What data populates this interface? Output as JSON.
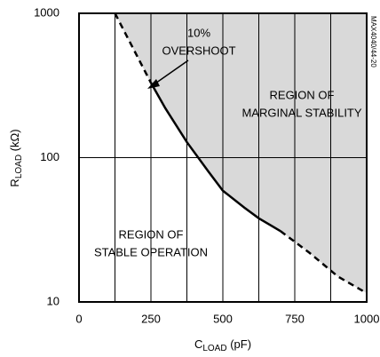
{
  "chart_data": {
    "type": "line",
    "xlabel": {
      "main": "C",
      "sub": "LOAD",
      "rest": " (pF)"
    },
    "ylabel": {
      "main": "R",
      "sub": "LOAD",
      "rest": " (kΩ)"
    },
    "side_note": "MAX4040/44-20",
    "annotations": [
      {
        "lines": [
          "10%",
          "OVERSHOOT"
        ]
      },
      {
        "lines": [
          "REGION OF",
          "MARGINAL STABILITY"
        ]
      },
      {
        "lines": [
          "REGION OF",
          "STABLE OPERATION"
        ]
      }
    ],
    "xlim": [
      0,
      1000
    ],
    "xticks": [
      0,
      250,
      500,
      750,
      1000
    ],
    "xgrid": [
      125,
      250,
      375,
      500,
      625,
      750,
      875
    ],
    "ylim": [
      10,
      1000
    ],
    "yticks": [
      10,
      100,
      1000
    ],
    "ygrid": [
      100
    ],
    "log_y": true,
    "shade_above": "#d9d9d9",
    "series": [
      {
        "color": "#000000",
        "dashed": true,
        "x": [
          125,
          250
        ],
        "values": [
          1000,
          330
        ]
      },
      {
        "color": "#000000",
        "dashed": false,
        "x": [
          250,
          300,
          375,
          450,
          500,
          575,
          625,
          700
        ],
        "values": [
          330,
          220,
          128,
          80,
          59,
          45,
          38,
          31
        ]
      },
      {
        "color": "#000000",
        "dashed": true,
        "x": [
          700,
          800,
          900,
          1000
        ],
        "values": [
          31,
          22,
          15,
          11.5
        ]
      }
    ]
  }
}
